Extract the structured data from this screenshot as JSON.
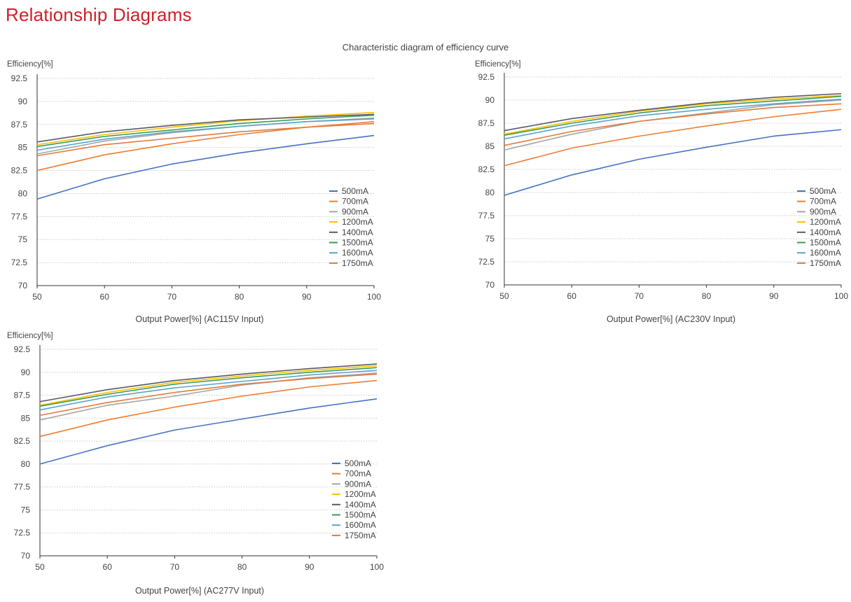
{
  "page": {
    "title": "Relationship Diagrams",
    "heading": "Characteristic diagram of efficiency curve"
  },
  "colors": {
    "title": "#d0202a",
    "500mA": "#4472c4",
    "700mA": "#ed7d31",
    "900mA": "#a5a5a5",
    "1200mA": "#ffc000",
    "1400mA": "#595969",
    "1500mA": "#3a9a55",
    "1600mA": "#5ba3c9",
    "1750mA": "#e07a3c"
  },
  "chart_data": [
    {
      "type": "line",
      "xlabel": "Output Power[%] (AC115V Input)",
      "ylabel": "Efficiency[%]",
      "x": [
        50,
        60,
        70,
        80,
        90,
        100
      ],
      "xlim": [
        50,
        100
      ],
      "ylim": [
        70,
        92.5
      ],
      "xticks": [
        "50",
        "60",
        "70",
        "80",
        "90",
        "100"
      ],
      "yticks": [
        "70",
        "72.5",
        "75",
        "77.5",
        "80",
        "82.5",
        "85",
        "87.5",
        "90",
        "92.5"
      ],
      "grid": "horizontal dotted",
      "legend": "bottom-right",
      "series": [
        {
          "name": "500mA",
          "values": [
            79.4,
            81.6,
            83.2,
            84.4,
            85.4,
            86.3
          ]
        },
        {
          "name": "700mA",
          "values": [
            82.5,
            84.2,
            85.4,
            86.4,
            87.2,
            87.8
          ]
        },
        {
          "name": "900mA",
          "values": [
            84.3,
            85.7,
            86.6,
            87.3,
            87.8,
            88.2
          ]
        },
        {
          "name": "1200mA",
          "values": [
            85.3,
            86.4,
            87.2,
            87.9,
            88.4,
            88.8
          ]
        },
        {
          "name": "1400mA",
          "values": [
            85.6,
            86.7,
            87.4,
            88.0,
            88.3,
            88.6
          ]
        },
        {
          "name": "1500mA",
          "values": [
            85.1,
            86.2,
            86.9,
            87.6,
            88.1,
            88.5
          ]
        },
        {
          "name": "1600mA",
          "values": [
            84.7,
            85.9,
            86.7,
            87.3,
            87.8,
            88.1
          ]
        },
        {
          "name": "1750mA",
          "values": [
            84.1,
            85.3,
            86.0,
            86.7,
            87.2,
            87.6
          ]
        }
      ]
    },
    {
      "type": "line",
      "xlabel": "Output Power[%] (AC230V Input)",
      "ylabel": "Efficiency[%]",
      "x": [
        50,
        60,
        70,
        80,
        90,
        100
      ],
      "xlim": [
        50,
        100
      ],
      "ylim": [
        70,
        92.5
      ],
      "xticks": [
        "50",
        "60",
        "70",
        "80",
        "90",
        "100"
      ],
      "yticks": [
        "70",
        "72.5",
        "75",
        "77.5",
        "80",
        "82.5",
        "85",
        "87.5",
        "90",
        "92.5"
      ],
      "grid": "horizontal dotted",
      "legend": "bottom-right",
      "series": [
        {
          "name": "500mA",
          "values": [
            79.7,
            81.9,
            83.6,
            84.9,
            86.1,
            86.8
          ]
        },
        {
          "name": "700mA",
          "values": [
            82.9,
            84.8,
            86.1,
            87.2,
            88.2,
            89.0
          ]
        },
        {
          "name": "900mA",
          "values": [
            84.6,
            86.3,
            87.7,
            88.6,
            89.5,
            90.0
          ]
        },
        {
          "name": "1200mA",
          "values": [
            86.3,
            87.7,
            88.8,
            89.6,
            90.1,
            90.5
          ]
        },
        {
          "name": "1400mA",
          "values": [
            86.7,
            88.0,
            88.9,
            89.7,
            90.3,
            90.7
          ]
        },
        {
          "name": "1500mA",
          "values": [
            86.2,
            87.5,
            88.6,
            89.4,
            89.9,
            90.4
          ]
        },
        {
          "name": "1600mA",
          "values": [
            85.8,
            87.2,
            88.3,
            89.0,
            89.6,
            90.1
          ]
        },
        {
          "name": "1750mA",
          "values": [
            85.1,
            86.6,
            87.7,
            88.5,
            89.2,
            89.6
          ]
        }
      ]
    },
    {
      "type": "line",
      "xlabel": "Output Power[%] (AC277V Input)",
      "ylabel": "Efficiency[%]",
      "x": [
        50,
        60,
        70,
        80,
        90,
        100
      ],
      "xlim": [
        50,
        100
      ],
      "ylim": [
        70,
        92.5
      ],
      "xticks": [
        "50",
        "60",
        "70",
        "80",
        "90",
        "100"
      ],
      "yticks": [
        "70",
        "72.5",
        "75",
        "77.5",
        "80",
        "82.5",
        "85",
        "87.5",
        "90",
        "92.5"
      ],
      "grid": "horizontal dotted",
      "legend": "bottom-right",
      "series": [
        {
          "name": "500mA",
          "values": [
            80.0,
            82.0,
            83.7,
            84.9,
            86.1,
            87.1
          ]
        },
        {
          "name": "700mA",
          "values": [
            83.0,
            84.8,
            86.2,
            87.4,
            88.4,
            89.1
          ]
        },
        {
          "name": "900mA",
          "values": [
            84.8,
            86.4,
            87.4,
            88.6,
            89.4,
            89.9
          ]
        },
        {
          "name": "1200mA",
          "values": [
            86.4,
            87.8,
            88.9,
            89.6,
            90.2,
            90.7
          ]
        },
        {
          "name": "1400mA",
          "values": [
            86.8,
            88.1,
            89.1,
            89.8,
            90.4,
            90.9
          ]
        },
        {
          "name": "1500mA",
          "values": [
            86.3,
            87.6,
            88.7,
            89.4,
            90.0,
            90.5
          ]
        },
        {
          "name": "1600mA",
          "values": [
            85.9,
            87.3,
            88.3,
            89.0,
            89.7,
            90.2
          ]
        },
        {
          "name": "1750mA",
          "values": [
            85.3,
            86.7,
            87.8,
            88.7,
            89.3,
            89.8
          ]
        }
      ]
    }
  ]
}
